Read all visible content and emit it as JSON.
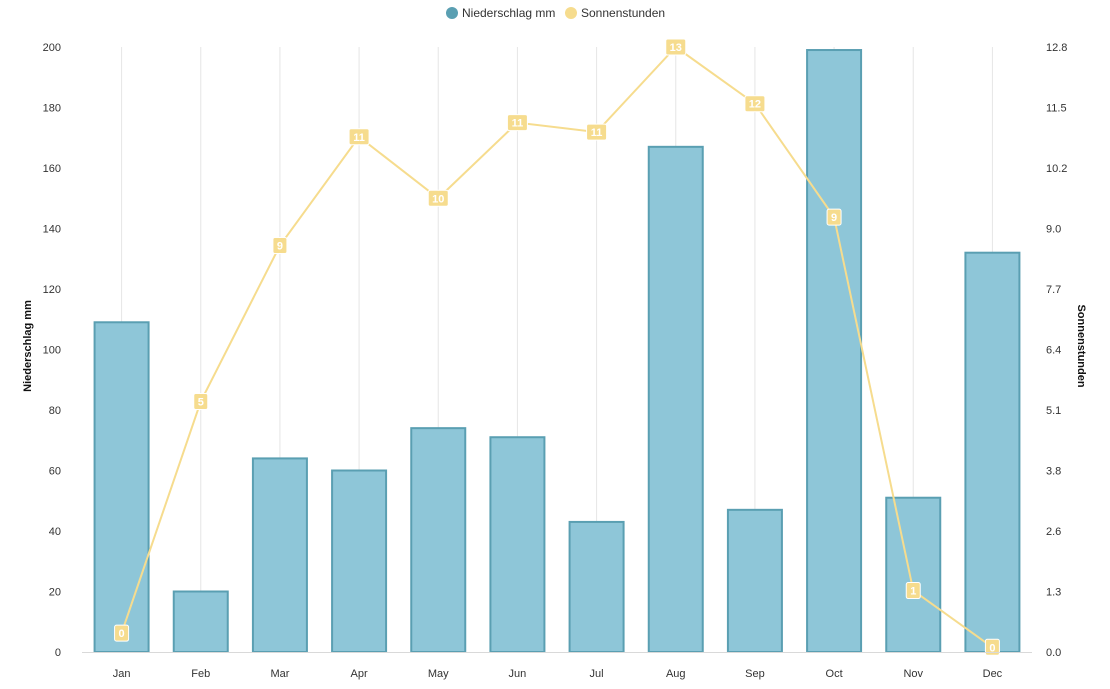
{
  "chart_data": {
    "type": "bar+line",
    "categories": [
      "Jan",
      "Feb",
      "Mar",
      "Apr",
      "May",
      "Jun",
      "Jul",
      "Aug",
      "Sep",
      "Oct",
      "Nov",
      "Dec"
    ],
    "series": [
      {
        "name": "Niederschlag mm",
        "type": "bar",
        "axis": "left",
        "color": "#8ec6d8",
        "border_color": "#5a9fb2",
        "values": [
          109,
          20,
          64,
          60,
          74,
          71,
          43,
          167,
          47,
          199,
          51,
          132
        ]
      },
      {
        "name": "Sonnenstunden",
        "type": "line",
        "axis": "right",
        "color": "#f6dc8e",
        "values": [
          0.4,
          5.3,
          8.6,
          10.9,
          9.6,
          11.2,
          11.0,
          12.8,
          11.6,
          9.2,
          1.3,
          0.1
        ],
        "data_labels": [
          "0",
          "5",
          "9",
          "11",
          "10",
          "11",
          "11",
          "13",
          "12",
          "9",
          "1",
          "0"
        ]
      }
    ],
    "y_left": {
      "label": "Niederschlag mm",
      "ylim": [
        0,
        200
      ],
      "ticks": [
        "0",
        "20",
        "40",
        "60",
        "80",
        "100",
        "120",
        "140",
        "160",
        "180",
        "200"
      ]
    },
    "y_right": {
      "label": "Sonnenstunden",
      "ylim": [
        0,
        12.8
      ],
      "ticks": [
        "0.0",
        "1.3",
        "2.6",
        "3.8",
        "5.1",
        "6.4",
        "7.7",
        "9.0",
        "10.2",
        "11.5",
        "12.8"
      ]
    },
    "legend": "top-center",
    "grid": "vertical"
  }
}
